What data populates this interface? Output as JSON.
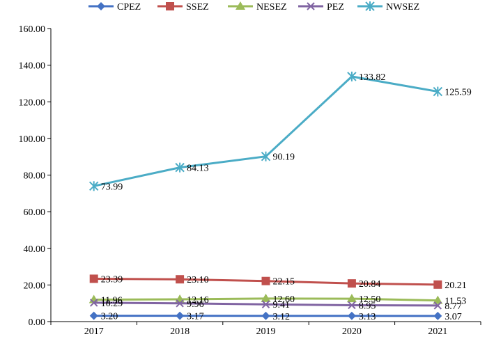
{
  "chart_data": {
    "type": "line",
    "categories": [
      "2017",
      "2018",
      "2019",
      "2020",
      "2021"
    ],
    "ylim": [
      0,
      160
    ],
    "yticks": [
      "0.00",
      "20.00",
      "40.00",
      "60.00",
      "80.00",
      "100.00",
      "120.00",
      "140.00",
      "160.00"
    ],
    "grid": false,
    "legend_position": "top",
    "series": [
      {
        "name": "CPEZ",
        "color": "#4472c4",
        "marker": "diamond",
        "values": [
          3.2,
          3.17,
          3.12,
          3.13,
          3.07
        ],
        "labels": [
          "3.20",
          "3.17",
          "3.12",
          "3.13",
          "3.07"
        ]
      },
      {
        "name": "SSEZ",
        "color": "#c0504d",
        "marker": "square",
        "values": [
          23.39,
          23.1,
          22.15,
          20.84,
          20.21
        ],
        "labels": [
          "23.39",
          "23.10",
          "22.15",
          "20.84",
          "20.21"
        ]
      },
      {
        "name": "NESEZ",
        "color": "#9bbb59",
        "marker": "triangle",
        "values": [
          11.96,
          12.16,
          12.6,
          12.5,
          11.53
        ],
        "labels": [
          "11.96",
          "12.16",
          "12.60",
          "12.50",
          "11.53"
        ]
      },
      {
        "name": "PEZ",
        "color": "#8064a2",
        "marker": "x",
        "values": [
          10.29,
          9.96,
          9.41,
          8.95,
          8.77
        ],
        "labels": [
          "10.29",
          "9.96",
          "9.41",
          "8.95",
          "8.77"
        ]
      },
      {
        "name": "NWSEZ",
        "color": "#4bacc6",
        "marker": "asterisk",
        "values": [
          73.99,
          84.13,
          90.19,
          133.82,
          125.59
        ],
        "labels": [
          "73.99",
          "84.13",
          "90.19",
          "133.82",
          "125.59"
        ]
      }
    ]
  }
}
